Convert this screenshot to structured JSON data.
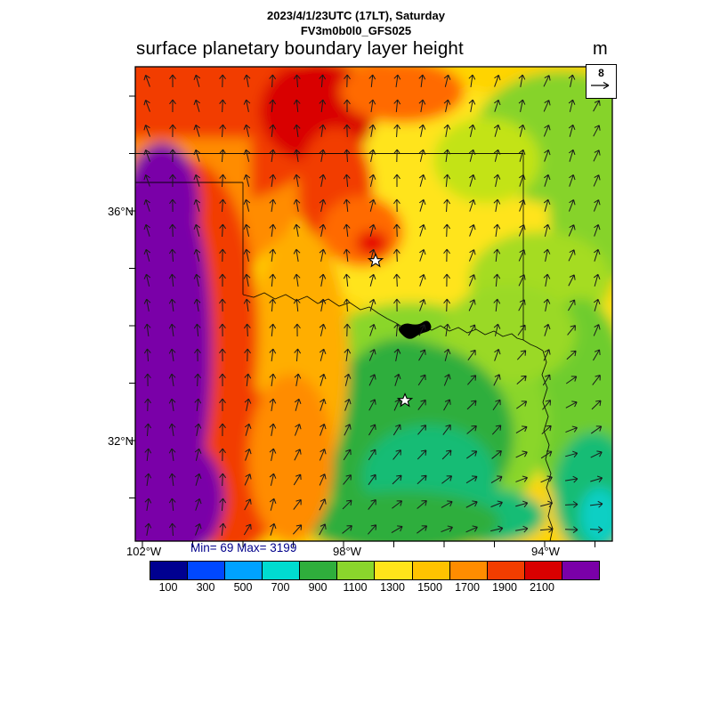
{
  "header": {
    "datetime_line": "2023/4/1/23UTC (17LT), Saturday",
    "model_line": "FV3m0b0l0_GFS025",
    "title": "surface planetary boundary layer height",
    "units_label": "m"
  },
  "axes": {
    "lat_labels": [
      "36°N",
      "32°N"
    ],
    "lon_labels": [
      "102°W",
      "98°W",
      "94°W"
    ]
  },
  "stats_line": "Min= 69 Max= 3199",
  "wind_reference": {
    "value": "8"
  },
  "colorbar": {
    "tick_labels": [
      "100",
      "300",
      "500",
      "700",
      "900",
      "1100",
      "1300",
      "1500",
      "1700",
      "1900",
      "2100"
    ],
    "colors": [
      "#000090",
      "#0048ff",
      "#00a2ff",
      "#00dcd0",
      "#2fae3c",
      "#8ad62c",
      "#ffe41a",
      "#ffc300",
      "#ff8c00",
      "#f23d00",
      "#d90000",
      "#7a00a8"
    ]
  },
  "chart_data": {
    "type": "heatmap",
    "title": "surface planetary boundary layer height",
    "model_run": "FV3m0b0l0_GFS025",
    "valid_time": "2023/4/1/23UTC (17LT), Saturday",
    "units": "m",
    "stat_min": 69,
    "stat_max": 3199,
    "x_ticks": [
      "102°W",
      "98°W",
      "94°W"
    ],
    "y_ticks": [
      "36°N",
      "32°N"
    ],
    "colorbar_levels": [
      100,
      300,
      500,
      700,
      900,
      1100,
      1300,
      1500,
      1700,
      1900,
      2100
    ],
    "colorbar_colors": [
      "#000090",
      "#0048ff",
      "#00a2ff",
      "#00dcd0",
      "#2fae3c",
      "#8ad62c",
      "#ffe41a",
      "#ffc300",
      "#ff8c00",
      "#f23d00",
      "#d90000",
      "#7a00a8"
    ],
    "wind_vector_reference": 8,
    "legend_position": "bottom",
    "overlays": [
      "wind vector field",
      "state borders (Texas / Oklahoma region)",
      "two star station markers",
      "dark water body on Red River"
    ],
    "field_regions": [
      {
        "area": "far west strip",
        "approx_value_m": "2100-3199",
        "color": "purple"
      },
      {
        "area": "northwest / panhandles",
        "approx_value_m": "1700-2100",
        "color": "red"
      },
      {
        "area": "north-central band",
        "approx_value_m": "1300-1700",
        "color": "orange"
      },
      {
        "area": "central belt",
        "approx_value_m": "1100-1300",
        "color": "yellow"
      },
      {
        "area": "southeast / east",
        "approx_value_m": "500-1100",
        "color": "green"
      },
      {
        "area": "pockets south and southeast",
        "approx_value_m": "300-700",
        "color": "teal-cyan"
      }
    ]
  }
}
